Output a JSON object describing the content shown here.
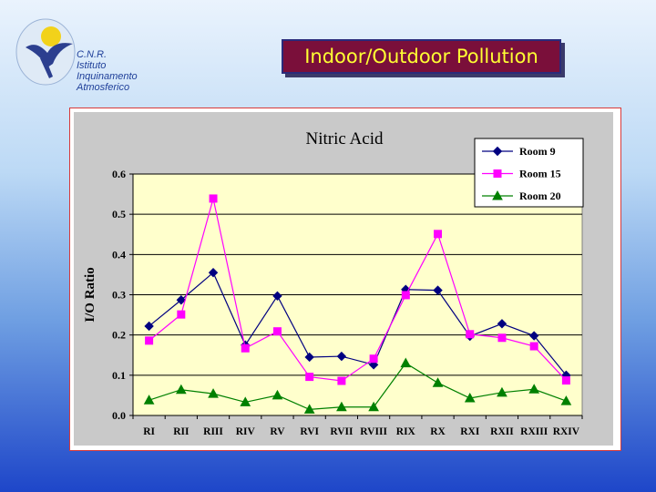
{
  "logo": {
    "lines": [
      "C.N.R.",
      "Istituto",
      "Inquinamento",
      "Atmosferico"
    ]
  },
  "slide_title": "Indoor/Outdoor Pollution",
  "colors": {
    "title_bg": "#7a0f3a",
    "title_text": "#ffff33",
    "plot_bg": "#ffffcc",
    "room9": "#000080",
    "room15": "#ff00ff",
    "room20": "#008000"
  },
  "chart_data": {
    "type": "line",
    "title": "Nitric Acid",
    "xlabel": "",
    "ylabel": "I/O Ratio",
    "ylim": [
      0,
      0.6
    ],
    "yticks": [
      "0.0",
      "0.1",
      "0.2",
      "0.3",
      "0.4",
      "0.5",
      "0.6"
    ],
    "grid": true,
    "legend": "top-right",
    "categories": [
      "RI",
      "RII",
      "RIII",
      "RIV",
      "RV",
      "RVI",
      "RVII",
      "RVIII",
      "RIX",
      "RX",
      "RXI",
      "RXII",
      "RXIII",
      "RXIV"
    ],
    "series": [
      {
        "name": "Room 9",
        "marker": "diamond",
        "color": "#000080",
        "values": [
          0.222,
          0.287,
          0.355,
          0.175,
          0.297,
          0.145,
          0.147,
          0.126,
          0.313,
          0.311,
          0.197,
          0.228,
          0.198,
          0.1
        ]
      },
      {
        "name": "Room 15",
        "marker": "square",
        "color": "#ff00ff",
        "values": [
          0.186,
          0.251,
          0.539,
          0.167,
          0.209,
          0.096,
          0.086,
          0.141,
          0.299,
          0.451,
          0.202,
          0.193,
          0.172,
          0.087
        ]
      },
      {
        "name": "Room 20",
        "marker": "triangle",
        "color": "#008000",
        "values": [
          0.038,
          0.064,
          0.054,
          0.033,
          0.05,
          0.015,
          0.021,
          0.021,
          0.13,
          0.081,
          0.043,
          0.057,
          0.065,
          0.036
        ]
      }
    ]
  }
}
